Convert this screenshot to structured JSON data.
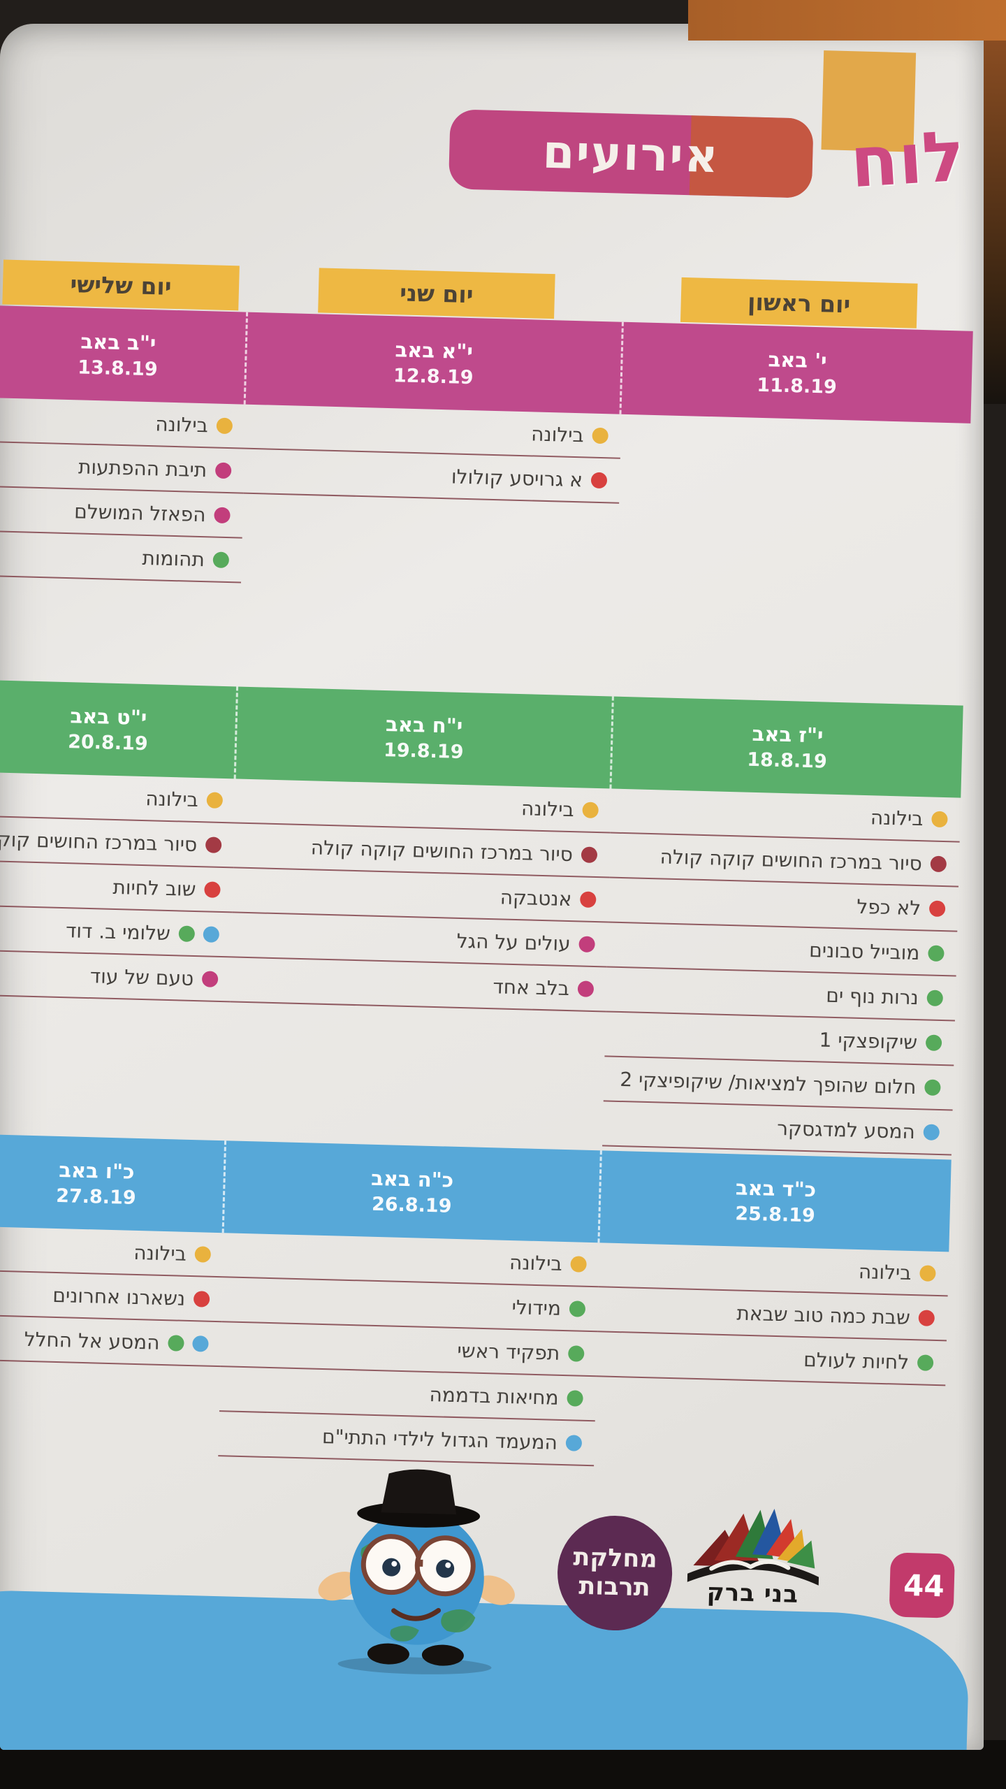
{
  "page": {
    "title": {
      "board_word": "לוח",
      "events_word": "אירועים"
    },
    "page_number": "44",
    "day_headers": [
      "יום ראשון",
      "יום שני",
      "יום שלישי"
    ],
    "weeks": [
      {
        "band_color": "pink",
        "days": [
          {
            "hebrew_date": "י' באב",
            "date": "11.8.19",
            "events": []
          },
          {
            "hebrew_date": "י\"א באב",
            "date": "12.8.19",
            "events": [
              {
                "label": "בילונה",
                "bullets": [
                  "yellow"
                ]
              },
              {
                "label": "א גרויסע קולולו",
                "bullets": [
                  "red"
                ]
              }
            ]
          },
          {
            "hebrew_date": "י\"ב באב",
            "date": "13.8.19",
            "events": [
              {
                "label": "בילונה",
                "bullets": [
                  "yellow"
                ]
              },
              {
                "label": "תיבת ההפתעות",
                "bullets": [
                  "magenta"
                ]
              },
              {
                "label": "הפאזל המושלם",
                "bullets": [
                  "magenta"
                ]
              },
              {
                "label": "תהומות",
                "bullets": [
                  "green"
                ]
              }
            ]
          }
        ]
      },
      {
        "band_color": "green",
        "days": [
          {
            "hebrew_date": "י\"ז באב",
            "date": "18.8.19",
            "events": [
              {
                "label": "בילונה",
                "bullets": [
                  "yellow"
                ]
              },
              {
                "label": "סיור במרכז החושים קוקה קולה",
                "bullets": [
                  "darkred"
                ]
              },
              {
                "label": "לא כפל",
                "bullets": [
                  "red"
                ]
              },
              {
                "label": "מובייל סבונים",
                "bullets": [
                  "green"
                ]
              },
              {
                "label": "נרות נוף ים",
                "bullets": [
                  "green"
                ]
              },
              {
                "label": "שיקופצקי 1",
                "bullets": [
                  "green"
                ]
              },
              {
                "label": "חלום שהופך למציאות/ שיקופיצקי 2",
                "bullets": [
                  "green"
                ]
              },
              {
                "label": "המסע למדגסקר",
                "bullets": [
                  "blue"
                ]
              }
            ]
          },
          {
            "hebrew_date": "י\"ח באב",
            "date": "19.8.19",
            "events": [
              {
                "label": "בילונה",
                "bullets": [
                  "yellow"
                ]
              },
              {
                "label": "סיור במרכז החושים קוקה קולה",
                "bullets": [
                  "darkred"
                ]
              },
              {
                "label": "אנטבקה",
                "bullets": [
                  "red"
                ]
              },
              {
                "label": "עולים על הגל",
                "bullets": [
                  "magenta"
                ]
              },
              {
                "label": "בלב אחד",
                "bullets": [
                  "magenta"
                ]
              }
            ]
          },
          {
            "hebrew_date": "י\"ט באב",
            "date": "20.8.19",
            "events": [
              {
                "label": "בילונה",
                "bullets": [
                  "yellow"
                ]
              },
              {
                "label": "סיור במרכז החושים קוקה קולה",
                "bullets": [
                  "darkred"
                ]
              },
              {
                "label": "שוב לחיות",
                "bullets": [
                  "red"
                ]
              },
              {
                "label": "שלומי ב. דוד",
                "bullets": [
                  "blue",
                  "green"
                ]
              },
              {
                "label": "טעם של עוד",
                "bullets": [
                  "magenta"
                ]
              }
            ]
          }
        ]
      },
      {
        "band_color": "blue",
        "days": [
          {
            "hebrew_date": "כ\"ד באב",
            "date": "25.8.19",
            "events": [
              {
                "label": "בילונה",
                "bullets": [
                  "yellow"
                ]
              },
              {
                "label": "שבת כמה טוב שבאת",
                "bullets": [
                  "red"
                ]
              },
              {
                "label": "לחיות לעולם",
                "bullets": [
                  "green"
                ]
              }
            ]
          },
          {
            "hebrew_date": "כ\"ה באב",
            "date": "26.8.19",
            "events": [
              {
                "label": "בילונה",
                "bullets": [
                  "yellow"
                ]
              },
              {
                "label": "מידולי",
                "bullets": [
                  "green"
                ]
              },
              {
                "label": "תפקיד ראשי",
                "bullets": [
                  "green"
                ]
              },
              {
                "label": "מחיאות בדממה",
                "bullets": [
                  "green"
                ]
              },
              {
                "label": "המעמד הגדול לילדי התתי\"ם",
                "bullets": [
                  "blue"
                ]
              }
            ]
          },
          {
            "hebrew_date": "כ\"ו באב",
            "date": "27.8.19",
            "events": [
              {
                "label": "בילונה",
                "bullets": [
                  "yellow"
                ]
              },
              {
                "label": "נשארנו אחרונים",
                "bullets": [
                  "red"
                ]
              },
              {
                "label": "המסע אל החלל",
                "bullets": [
                  "blue",
                  "green"
                ]
              }
            ]
          }
        ]
      }
    ],
    "footer": {
      "badge_line1": "מחלקת",
      "badge_line2": "תרבות",
      "logo_text": "בני ברק"
    },
    "colors": {
      "band_pink": "#bf4a8c",
      "band_green": "#5aaf6b",
      "band_blue": "#57a8d8",
      "day_header_yellow": "#eeb843",
      "title_pink": "#bf4680",
      "title_orange": "#c65a37",
      "dot_yellow": "#e9b23e",
      "dot_magenta": "#c23e7c",
      "dot_darkred": "#a33a44",
      "dot_red": "#d8413f",
      "dot_green": "#57aa5b",
      "dot_blue": "#57a8d8",
      "badge_purple": "#5c2a52",
      "page_number_pink": "#c23a6b"
    }
  }
}
